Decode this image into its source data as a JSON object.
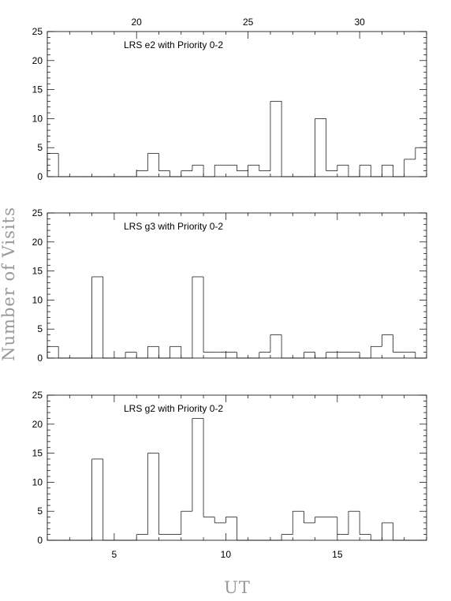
{
  "chart_data": {
    "type": "histogram",
    "ylabel": "Number of Visits",
    "xlabel": "UT",
    "bin_width": 0.5,
    "ylim": [
      0,
      25
    ],
    "yticks": [
      0,
      5,
      10,
      15,
      20,
      25
    ],
    "bottom_axis": {
      "xlim": [
        2,
        19
      ],
      "ticks": [
        5,
        10,
        15
      ],
      "tick_labels": [
        "5",
        "10",
        "15"
      ]
    },
    "top_axis": {
      "xlim": [
        16,
        33
      ],
      "ticks": [
        20,
        25,
        30
      ],
      "tick_labels": [
        "20",
        "25",
        "30"
      ]
    },
    "panels": [
      {
        "label": "LRS e2 with Priority 0-2",
        "bin_starts": [
          16,
          16.5,
          17,
          17.5,
          18,
          18.5,
          19,
          19.5,
          20,
          20.5,
          21,
          21.5,
          22,
          22.5,
          23,
          23.5,
          24,
          24.5,
          25,
          25.5,
          26,
          26.5,
          27,
          27.5,
          28,
          28.5,
          29,
          29.5,
          30,
          30.5,
          31,
          31.5,
          32,
          32.5
        ],
        "values": [
          4,
          0,
          0,
          0,
          0,
          0,
          0,
          0,
          1,
          4,
          1,
          0,
          1,
          2,
          0,
          2,
          2,
          1,
          2,
          1,
          13,
          0,
          0,
          0,
          10,
          1,
          2,
          0,
          2,
          0,
          2,
          0,
          3,
          5
        ]
      },
      {
        "label": "LRS g3 with Priority 0-2",
        "bin_starts": [
          2,
          2.5,
          3,
          3.5,
          4,
          4.5,
          5,
          5.5,
          6,
          6.5,
          7,
          7.5,
          8,
          8.5,
          9,
          9.5,
          10,
          10.5,
          11,
          11.5,
          12,
          12.5,
          13,
          13.5,
          14,
          14.5,
          15,
          15.5,
          16,
          16.5,
          17,
          17.5,
          18,
          18.5
        ],
        "values": [
          2,
          0,
          0,
          0,
          14,
          0,
          0,
          1,
          0,
          2,
          0,
          2,
          0,
          14,
          1,
          1,
          1,
          0,
          0,
          1,
          4,
          0,
          0,
          1,
          0,
          1,
          1,
          1,
          0,
          2,
          4,
          1,
          1,
          0
        ]
      },
      {
        "label": "LRS g2 with Priority 0-2",
        "bin_starts": [
          2,
          2.5,
          3,
          3.5,
          4,
          4.5,
          5,
          5.5,
          6,
          6.5,
          7,
          7.5,
          8,
          8.5,
          9,
          9.5,
          10,
          10.5,
          11,
          11.5,
          12,
          12.5,
          13,
          13.5,
          14,
          14.5,
          15,
          15.5,
          16,
          16.5,
          17,
          17.5,
          18,
          18.5
        ],
        "values": [
          0,
          0,
          0,
          0,
          14,
          0,
          0,
          0,
          1,
          15,
          1,
          1,
          5,
          21,
          4,
          3,
          4,
          0,
          0,
          0,
          0,
          1,
          5,
          3,
          4,
          4,
          1,
          5,
          1,
          0,
          3,
          0,
          0,
          0
        ]
      }
    ]
  }
}
